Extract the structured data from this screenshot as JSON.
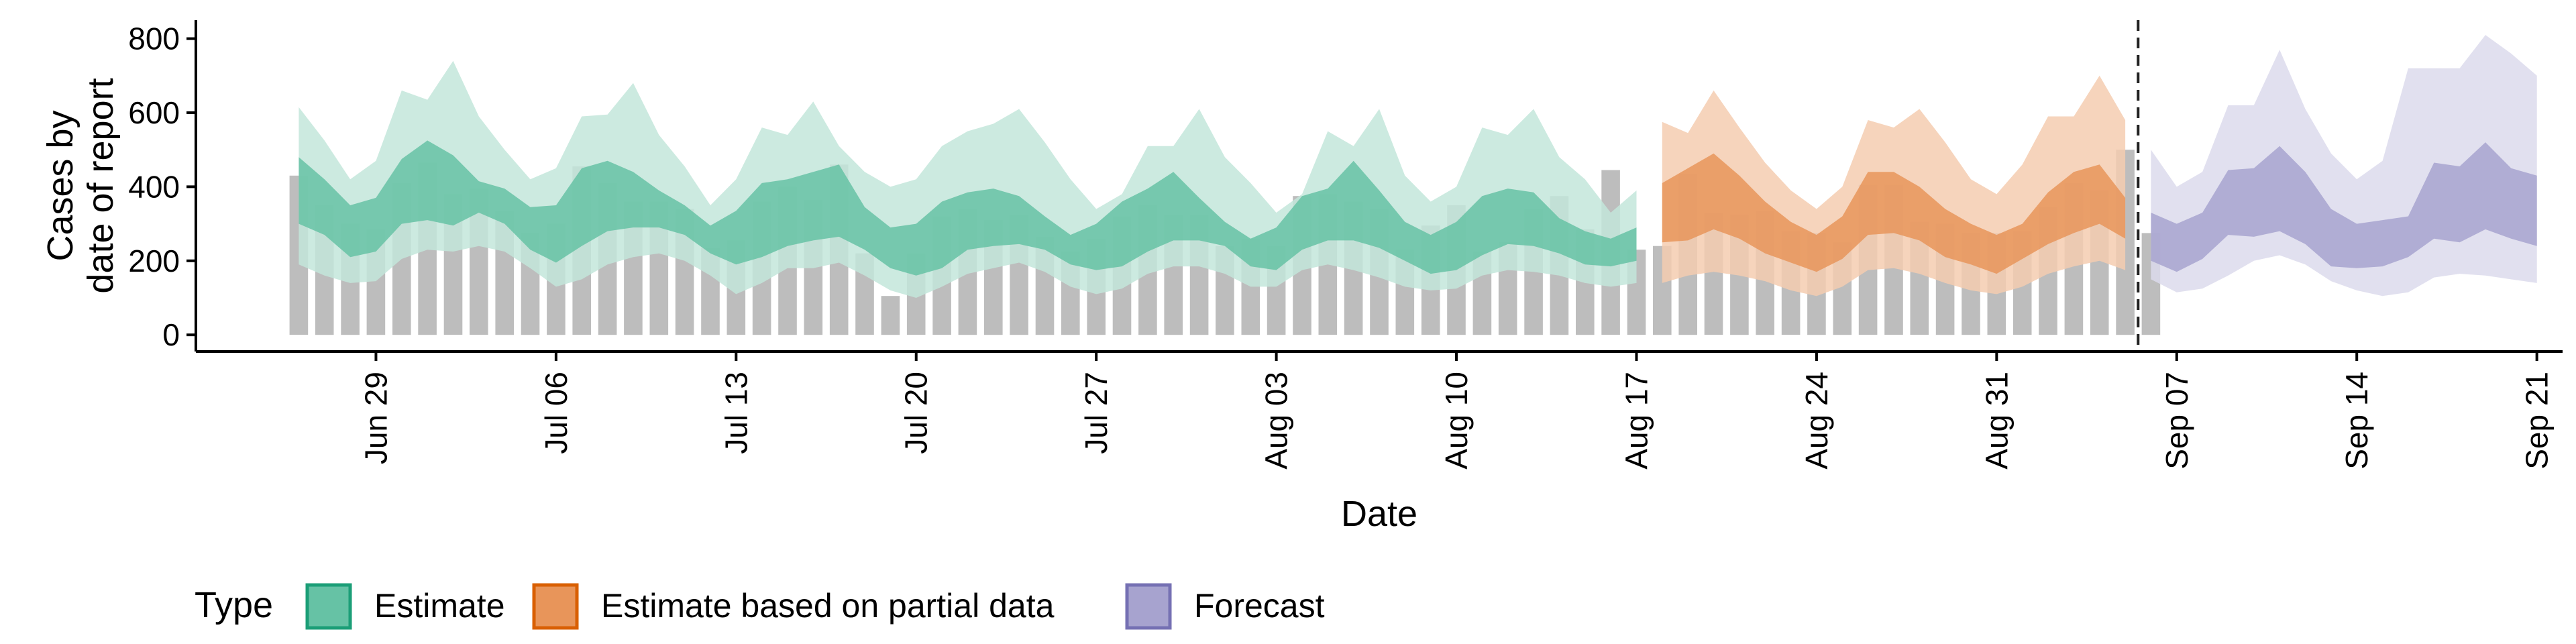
{
  "chart_data": {
    "type": "area",
    "xlabel": "Date",
    "ylabel_lines": [
      "Cases by",
      "date of report"
    ],
    "x_ticks": [
      "Jun 29",
      "Jul 06",
      "Jul 13",
      "Jul 20",
      "Jul 27",
      "Aug 03",
      "Aug 10",
      "Aug 17",
      "Aug 24",
      "Aug 31",
      "Sep 07",
      "Sep 14",
      "Sep 21"
    ],
    "y_ticks": [
      0,
      200,
      400,
      600,
      800
    ],
    "ylim": [
      -45,
      850
    ],
    "x_range": [
      "2020-06-22",
      "2020-09-22"
    ],
    "forecast_start": "2020-09-05",
    "grid": false,
    "legend_position": "bottom-left",
    "legend_title": "Type",
    "legend": [
      {
        "label": "Estimate",
        "color": "#66C2A5",
        "border": "#1B9E77"
      },
      {
        "label": "Estimate based on partial data",
        "color": "#E8955A",
        "border": "#D95F02"
      },
      {
        "label": "Forecast",
        "color": "#A7A3CF",
        "border": "#7570B3"
      }
    ],
    "colors": {
      "bars": "#BDBDBD",
      "estimate_outer": "#C3E6DA",
      "estimate_inner": "#66C2A5",
      "partial_outer": "#F5CDB0",
      "partial_inner": "#E8955A",
      "forecast_outer": "#DCDAEC",
      "forecast_inner": "#A7A3CF"
    },
    "bars": {
      "start_date": "2020-06-26",
      "values": [
        430,
        350,
        300,
        285,
        410,
        465,
        380,
        395,
        335,
        275,
        300,
        455,
        410,
        360,
        360,
        340,
        235,
        255,
        360,
        400,
        365,
        460,
        220,
        105,
        220,
        320,
        340,
        310,
        325,
        265,
        225,
        260,
        320,
        350,
        325,
        325,
        240,
        260,
        240,
        375,
        380,
        360,
        340,
        230,
        295,
        350,
        225,
        250,
        340,
        375,
        285,
        445,
        230,
        240,
        435,
        330,
        325,
        335,
        280,
        275,
        250,
        405,
        405,
        305,
        300,
        275,
        275,
        280,
        345,
        410,
        390,
        500,
        275
      ],
      "note": "daily reported cases"
    },
    "series": [
      {
        "name": "Estimate",
        "start_date": "2020-06-26",
        "lower90": [
          190,
          160,
          140,
          145,
          205,
          230,
          225,
          240,
          225,
          180,
          130,
          150,
          190,
          210,
          220,
          200,
          160,
          110,
          140,
          180,
          180,
          195,
          160,
          120,
          100,
          130,
          165,
          180,
          195,
          170,
          130,
          110,
          125,
          165,
          185,
          185,
          165,
          130,
          130,
          175,
          190,
          175,
          155,
          130,
          120,
          125,
          160,
          175,
          170,
          160,
          140,
          130,
          140
        ],
        "lower50": [
          300,
          270,
          210,
          225,
          300,
          310,
          295,
          330,
          300,
          230,
          195,
          240,
          280,
          290,
          290,
          270,
          220,
          190,
          210,
          240,
          255,
          265,
          230,
          180,
          160,
          180,
          230,
          240,
          245,
          230,
          190,
          175,
          185,
          225,
          255,
          255,
          240,
          185,
          175,
          230,
          255,
          255,
          235,
          200,
          165,
          175,
          215,
          245,
          240,
          220,
          190,
          185,
          200
        ],
        "upper50": [
          480,
          420,
          350,
          370,
          475,
          525,
          485,
          415,
          395,
          345,
          350,
          450,
          470,
          440,
          390,
          350,
          295,
          335,
          410,
          420,
          440,
          460,
          345,
          290,
          300,
          360,
          385,
          395,
          375,
          320,
          270,
          300,
          360,
          395,
          440,
          370,
          305,
          260,
          290,
          375,
          395,
          470,
          390,
          305,
          270,
          305,
          375,
          395,
          385,
          315,
          280,
          260,
          290
        ],
        "upper90": [
          615,
          525,
          420,
          470,
          660,
          635,
          740,
          590,
          500,
          420,
          450,
          590,
          595,
          680,
          540,
          455,
          350,
          420,
          560,
          540,
          630,
          510,
          440,
          400,
          420,
          510,
          550,
          570,
          610,
          520,
          420,
          340,
          380,
          510,
          510,
          610,
          480,
          410,
          330,
          380,
          550,
          510,
          610,
          430,
          360,
          400,
          560,
          540,
          610,
          480,
          420,
          330,
          390
        ]
      },
      {
        "name": "Estimate based on partial data",
        "start_date": "2020-08-18",
        "lower90": [
          140,
          160,
          170,
          160,
          145,
          120,
          105,
          130,
          175,
          180,
          165,
          140,
          120,
          110,
          130,
          165,
          185,
          200,
          175
        ],
        "lower50": [
          250,
          255,
          285,
          260,
          220,
          195,
          170,
          205,
          270,
          275,
          255,
          210,
          190,
          165,
          205,
          245,
          275,
          300,
          260
        ],
        "upper50": [
          410,
          450,
          490,
          430,
          360,
          305,
          270,
          320,
          440,
          440,
          400,
          340,
          300,
          270,
          300,
          385,
          440,
          460,
          370
        ],
        "upper90": [
          575,
          545,
          660,
          560,
          465,
          390,
          340,
          400,
          580,
          560,
          610,
          520,
          420,
          380,
          460,
          590,
          590,
          700,
          580
        ]
      },
      {
        "name": "Forecast",
        "start_date": "2020-09-06",
        "lower90": [
          150,
          115,
          125,
          160,
          200,
          215,
          190,
          145,
          120,
          105,
          115,
          155,
          165,
          160,
          150,
          140
        ],
        "lower50": [
          200,
          170,
          205,
          270,
          265,
          280,
          245,
          185,
          180,
          185,
          210,
          260,
          250,
          285,
          260,
          240
        ],
        "upper50": [
          330,
          300,
          330,
          445,
          450,
          510,
          440,
          340,
          300,
          310,
          320,
          465,
          455,
          520,
          450,
          430
        ],
        "upper90": [
          500,
          400,
          440,
          620,
          620,
          770,
          610,
          490,
          420,
          470,
          720,
          720,
          720,
          810,
          760,
          700
        ]
      }
    ]
  }
}
